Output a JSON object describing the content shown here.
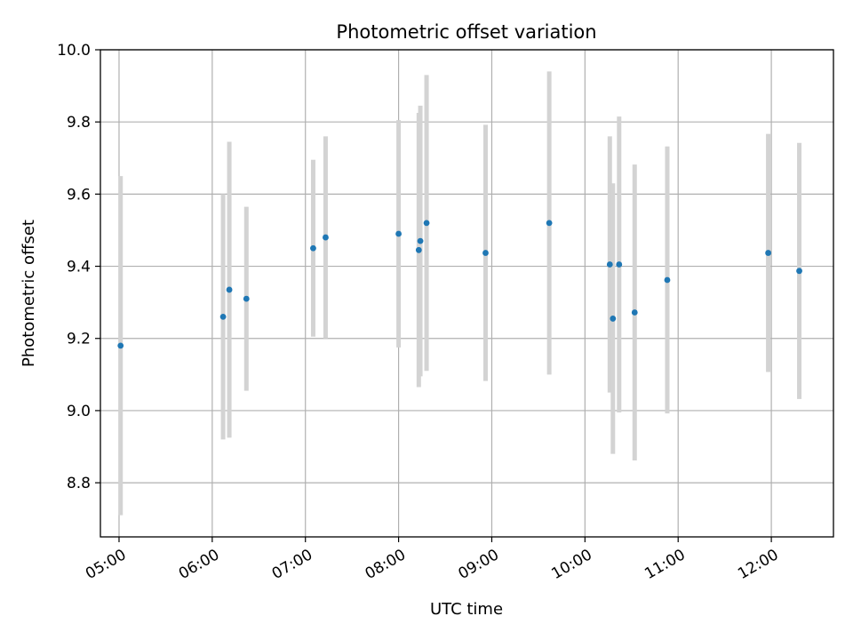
{
  "chart_data": {
    "type": "scatter",
    "title": "Photometric offset variation",
    "xlabel": "UTC time",
    "ylabel": "Photometric offset",
    "x_tick_labels": [
      "05:00",
      "06:00",
      "07:00",
      "08:00",
      "09:00",
      "10:00",
      "11:00",
      "12:00"
    ],
    "y_tick_labels": [
      "8.8",
      "9.0",
      "9.2",
      "9.4",
      "9.6",
      "9.8",
      "10.0"
    ],
    "ylim": [
      8.65,
      10.0
    ],
    "xlim": [
      "04:48",
      "12:40"
    ],
    "grid": true,
    "error_bars": true,
    "colors": {
      "point": "#1f77b4",
      "errorbar": "#d3d3d3",
      "grid": "#b0b0b0"
    },
    "points": [
      {
        "x": "05:01",
        "y": 9.18,
        "err": 0.47
      },
      {
        "x": "06:07",
        "y": 9.26,
        "err": 0.34
      },
      {
        "x": "06:11",
        "y": 9.335,
        "err": 0.41
      },
      {
        "x": "06:22",
        "y": 9.31,
        "err": 0.255
      },
      {
        "x": "07:05",
        "y": 9.45,
        "err": 0.245
      },
      {
        "x": "07:13",
        "y": 9.48,
        "err": 0.28
      },
      {
        "x": "08:00",
        "y": 9.49,
        "err": 0.315
      },
      {
        "x": "08:13",
        "y": 9.445,
        "err": 0.38
      },
      {
        "x": "08:14",
        "y": 9.47,
        "err": 0.375
      },
      {
        "x": "08:18",
        "y": 9.52,
        "err": 0.41
      },
      {
        "x": "08:56",
        "y": 9.437,
        "err": 0.355
      },
      {
        "x": "09:37",
        "y": 9.52,
        "err": 0.42
      },
      {
        "x": "10:16",
        "y": 9.405,
        "err": 0.355
      },
      {
        "x": "10:18",
        "y": 9.255,
        "err": 0.375
      },
      {
        "x": "10:22",
        "y": 9.405,
        "err": 0.41
      },
      {
        "x": "10:32",
        "y": 9.272,
        "err": 0.41
      },
      {
        "x": "10:53",
        "y": 9.362,
        "err": 0.37
      },
      {
        "x": "11:58",
        "y": 9.437,
        "err": 0.33
      },
      {
        "x": "12:18",
        "y": 9.387,
        "err": 0.355
      }
    ]
  }
}
